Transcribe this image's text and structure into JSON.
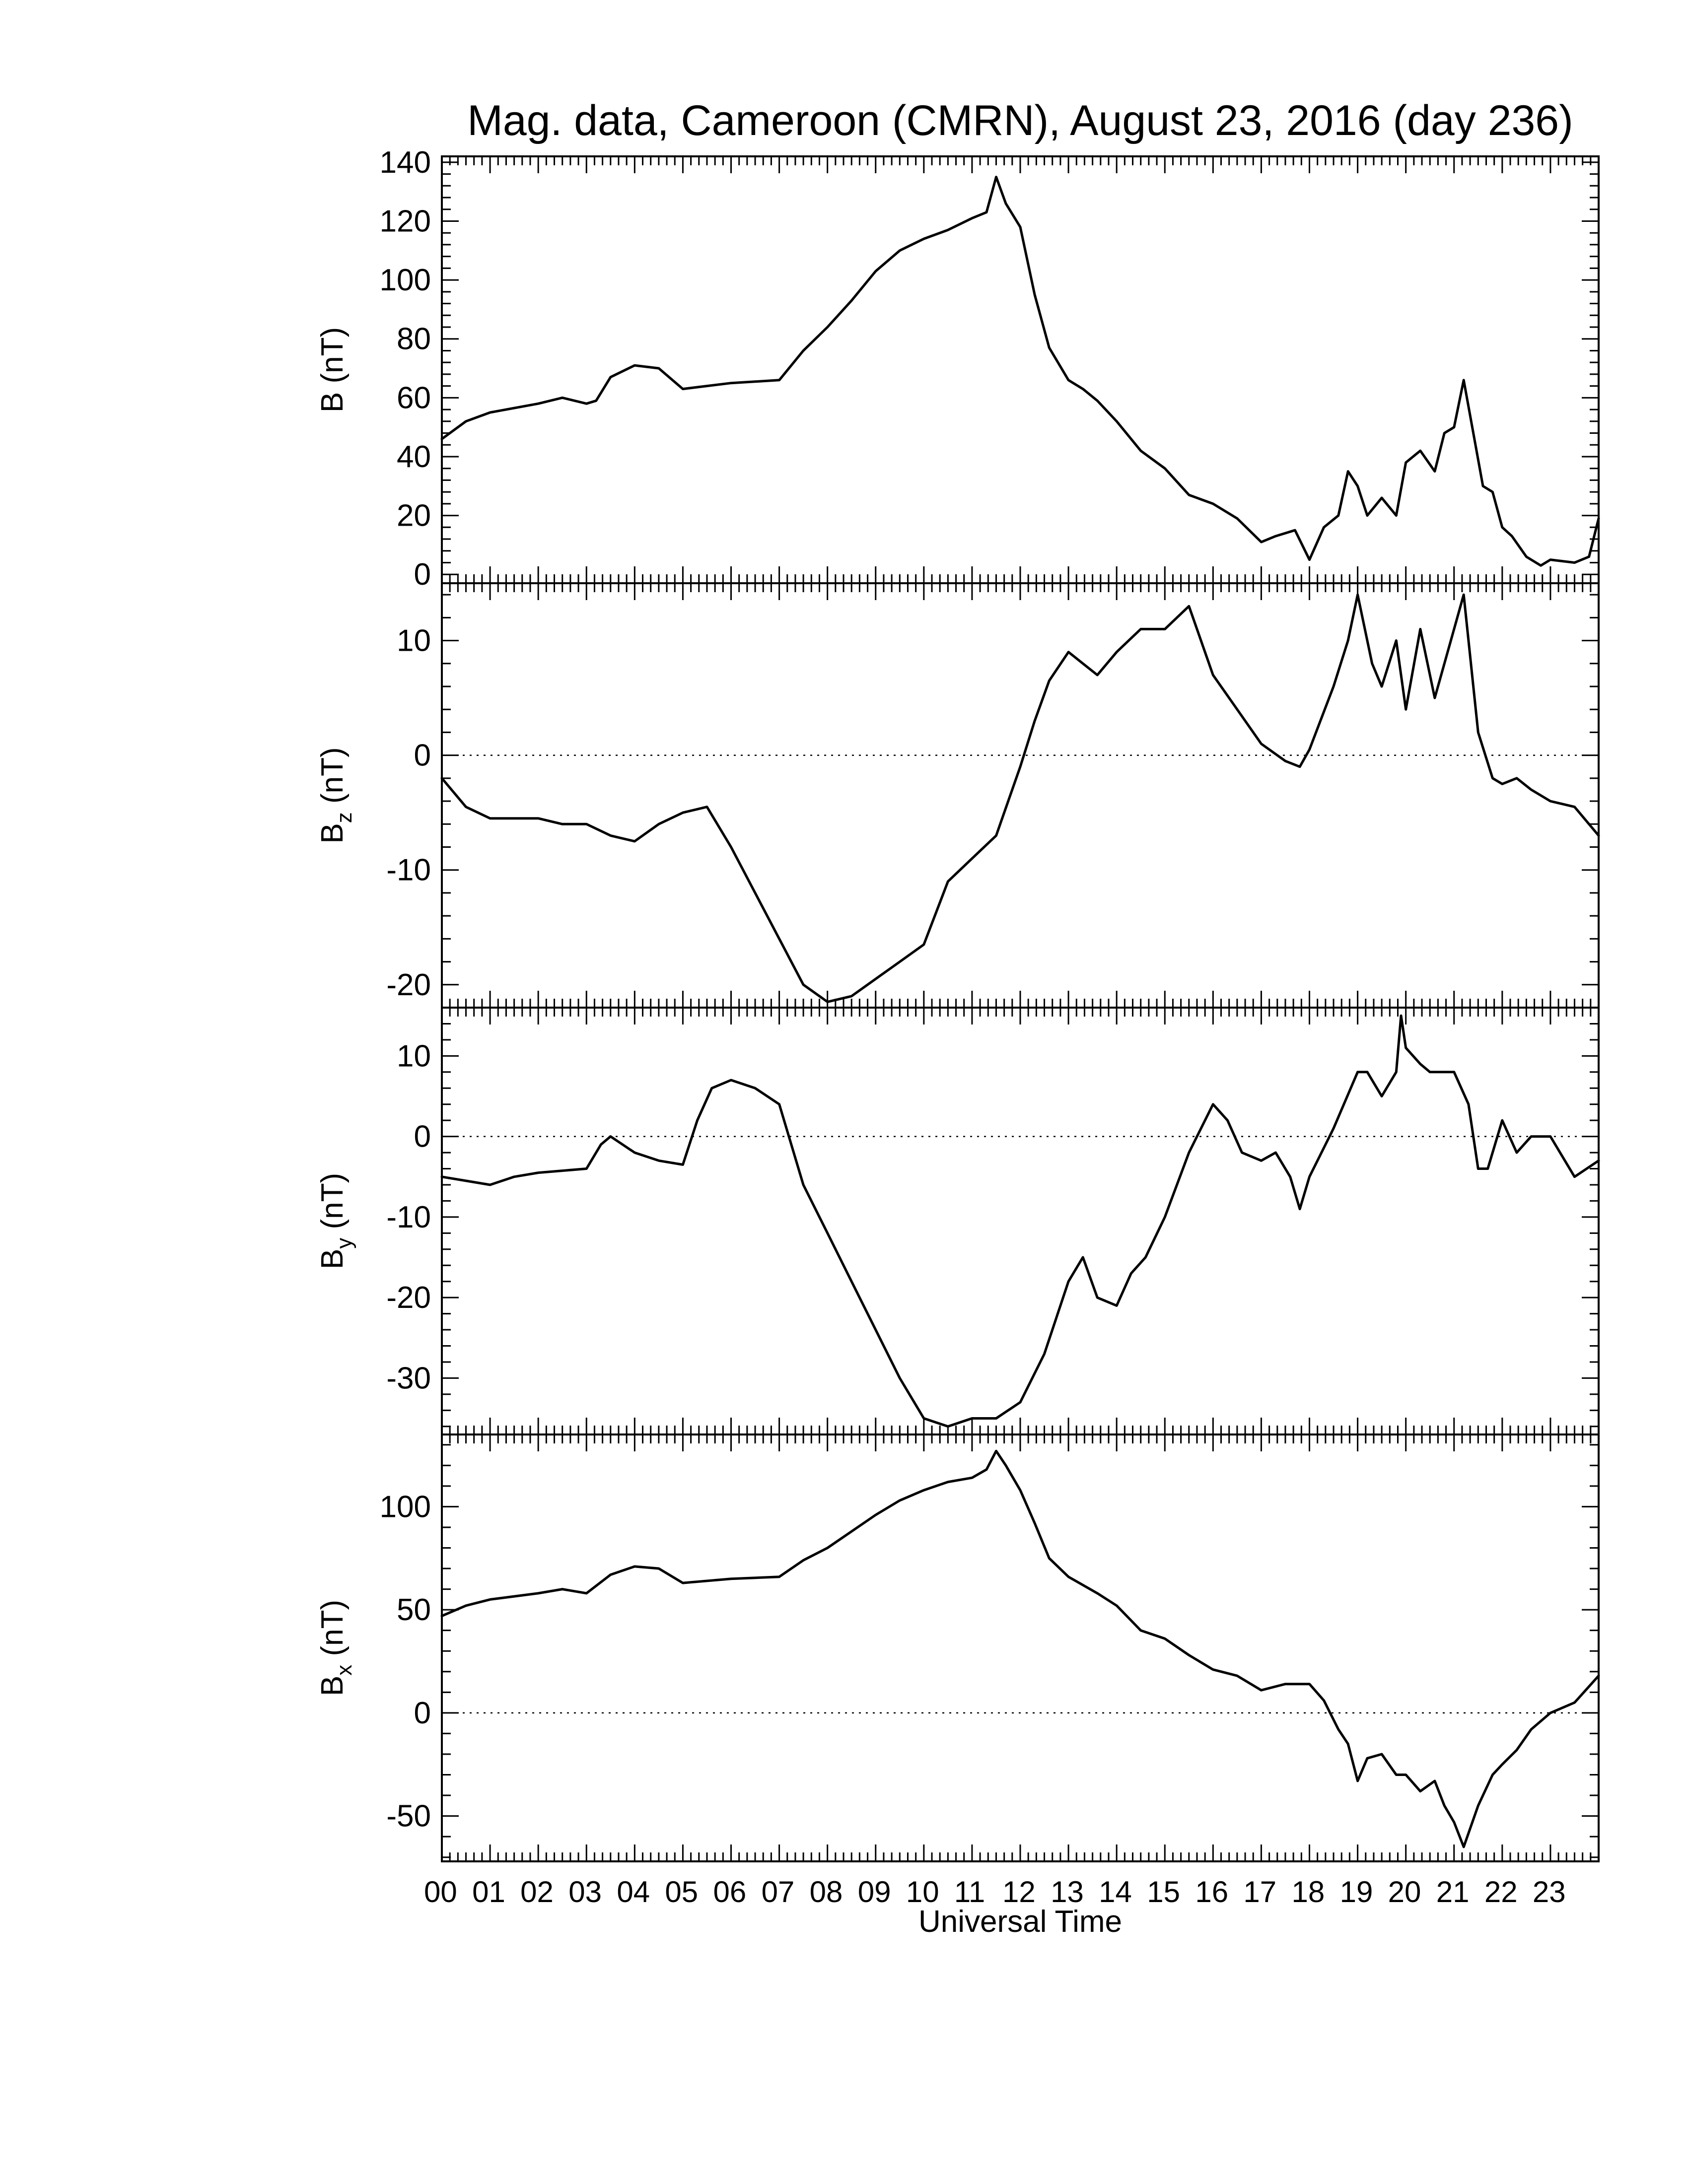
{
  "chart_data": {
    "type": "line",
    "title": "Mag. data, Cameroon (CMRN), August 23, 2016 (day 236)",
    "xlabel": "Universal Time",
    "xlim": [
      0,
      24
    ],
    "x_tick_labels": [
      "00",
      "01",
      "02",
      "03",
      "04",
      "05",
      "06",
      "07",
      "08",
      "09",
      "10",
      "11",
      "12",
      "13",
      "14",
      "15",
      "16",
      "17",
      "18",
      "19",
      "20",
      "21",
      "22",
      "23"
    ],
    "panels": [
      {
        "id": "B",
        "ylabel_base": "B",
        "ylabel_sub": "",
        "ylabel_unit": "(nT)",
        "ylim": [
          -3,
          142
        ],
        "yticks": [
          0,
          20,
          40,
          60,
          80,
          100,
          120,
          140
        ],
        "zero_line": false,
        "x": [
          0,
          0.5,
          1,
          2,
          2.5,
          3,
          3.2,
          3.5,
          4,
          4.5,
          5,
          6,
          7,
          7.5,
          8,
          8.5,
          9,
          9.5,
          10,
          10.5,
          11,
          11.3,
          11.5,
          11.7,
          12,
          12.3,
          12.6,
          13,
          13.3,
          13.6,
          14,
          14.5,
          15,
          15.5,
          16,
          16.5,
          17,
          17.3,
          17.7,
          18,
          18.3,
          18.6,
          18.8,
          19,
          19.2,
          19.5,
          19.8,
          20,
          20.3,
          20.6,
          20.8,
          21,
          21.2,
          21.4,
          21.6,
          21.8,
          22,
          22.2,
          22.5,
          22.8,
          23,
          23.5,
          23.8,
          24
        ],
        "values": [
          46,
          52,
          55,
          58,
          60,
          58,
          59,
          67,
          71,
          70,
          63,
          65,
          66,
          76,
          84,
          93,
          103,
          110,
          114,
          117,
          121,
          123,
          135,
          126,
          118,
          95,
          77,
          66,
          63,
          59,
          52,
          42,
          36,
          27,
          24,
          19,
          11,
          13,
          15,
          5,
          16,
          20,
          35,
          30,
          20,
          26,
          20,
          38,
          42,
          35,
          48,
          50,
          66,
          48,
          30,
          28,
          16,
          13,
          6,
          3,
          5,
          4,
          6,
          19
        ]
      },
      {
        "id": "Bz",
        "ylabel_base": "B",
        "ylabel_sub": "z",
        "ylabel_unit": "(nT)",
        "ylim": [
          -22,
          15
        ],
        "yticks": [
          -20,
          -10,
          0,
          10
        ],
        "zero_line": true,
        "x": [
          0,
          0.5,
          1,
          2,
          2.5,
          3,
          3.5,
          4,
          4.5,
          5,
          5.5,
          6,
          6.5,
          7,
          7.5,
          8,
          8.5,
          9,
          9.5,
          10,
          10.5,
          11,
          11.5,
          12,
          12.3,
          12.6,
          13,
          13.3,
          13.6,
          14,
          14.5,
          15,
          15.5,
          16,
          16.5,
          17,
          17.5,
          17.8,
          18,
          18.5,
          18.8,
          19,
          19.3,
          19.5,
          19.8,
          20,
          20.3,
          20.6,
          21,
          21.2,
          21.5,
          21.8,
          22,
          22.3,
          22.6,
          23,
          23.5,
          24
        ],
        "values": [
          -2,
          -4.5,
          -5.5,
          -5.5,
          -6,
          -6,
          -7,
          -7.5,
          -6,
          -5,
          -4.5,
          -8,
          -12,
          -16,
          -20,
          -21.5,
          -21,
          -19.5,
          -18,
          -16.5,
          -11,
          -9,
          -7,
          -1,
          3,
          6.5,
          9,
          8,
          7,
          9,
          11,
          11,
          13,
          7,
          4,
          1,
          -0.5,
          -1,
          0.5,
          6,
          10,
          14,
          8,
          6,
          10,
          4,
          11,
          5,
          11,
          14,
          2,
          -2,
          -2.5,
          -2,
          -3,
          -4,
          -4.5,
          -7
        ]
      },
      {
        "id": "By",
        "ylabel_base": "B",
        "ylabel_sub": "y",
        "ylabel_unit": "(nT)",
        "ylim": [
          -37,
          16
        ],
        "yticks": [
          -30,
          -20,
          -10,
          0,
          10
        ],
        "zero_line": true,
        "x": [
          0,
          0.5,
          1,
          1.5,
          2,
          3,
          3.3,
          3.5,
          4,
          4.5,
          5,
          5.3,
          5.6,
          6,
          6.5,
          7,
          7.5,
          8,
          8.5,
          9,
          9.5,
          10,
          10.5,
          11,
          11.5,
          12,
          12.5,
          13,
          13.3,
          13.6,
          14,
          14.3,
          14.6,
          15,
          15.5,
          16,
          16.3,
          16.6,
          17,
          17.3,
          17.6,
          17.8,
          18,
          18.5,
          19,
          19.2,
          19.5,
          19.8,
          19.9,
          20,
          20.3,
          20.5,
          20.8,
          21,
          21.3,
          21.5,
          21.7,
          22,
          22.3,
          22.6,
          23,
          23.5,
          24
        ],
        "values": [
          -5,
          -5.5,
          -6,
          -5,
          -4.5,
          -4,
          -1,
          0,
          -2,
          -3,
          -3.5,
          2,
          6,
          7,
          6,
          4,
          -6,
          -12,
          -18,
          -24,
          -30,
          -35,
          -36,
          -35,
          -35,
          -33,
          -27,
          -18,
          -15,
          -20,
          -21,
          -17,
          -15,
          -10,
          -2,
          4,
          2,
          -2,
          -3,
          -2,
          -5,
          -9,
          -5,
          1,
          8,
          8,
          5,
          8,
          15,
          11,
          9,
          8,
          8,
          8,
          4,
          -4,
          -4,
          2,
          -2,
          0,
          0,
          -5,
          -3
        ]
      },
      {
        "id": "Bx",
        "ylabel_base": "B",
        "ylabel_sub": "x",
        "ylabel_unit": "(nT)",
        "ylim": [
          -72,
          135
        ],
        "yticks": [
          -50,
          0,
          50,
          100
        ],
        "zero_line": true,
        "x": [
          0,
          0.5,
          1,
          2,
          2.5,
          3,
          3.5,
          4,
          4.5,
          5,
          6,
          7,
          7.5,
          8,
          8.5,
          9,
          9.5,
          10,
          10.5,
          11,
          11.3,
          11.5,
          11.7,
          12,
          12.3,
          12.6,
          13,
          13.3,
          13.6,
          14,
          14.5,
          15,
          15.5,
          16,
          16.5,
          17,
          17.5,
          18,
          18.3,
          18.6,
          18.8,
          19,
          19.2,
          19.5,
          19.8,
          20,
          20.3,
          20.6,
          20.8,
          21,
          21.2,
          21.5,
          21.8,
          22,
          22.3,
          22.6,
          23,
          23.5,
          24
        ],
        "values": [
          47,
          52,
          55,
          58,
          60,
          58,
          67,
          71,
          70,
          63,
          65,
          66,
          74,
          80,
          88,
          96,
          103,
          108,
          112,
          114,
          118,
          127,
          120,
          108,
          92,
          75,
          66,
          62,
          58,
          52,
          40,
          36,
          28,
          21,
          18,
          11,
          14,
          14,
          6,
          -8,
          -15,
          -33,
          -22,
          -20,
          -30,
          -30,
          -38,
          -33,
          -45,
          -53,
          -65,
          -45,
          -30,
          -25,
          -18,
          -8,
          0,
          5,
          18
        ]
      }
    ]
  }
}
